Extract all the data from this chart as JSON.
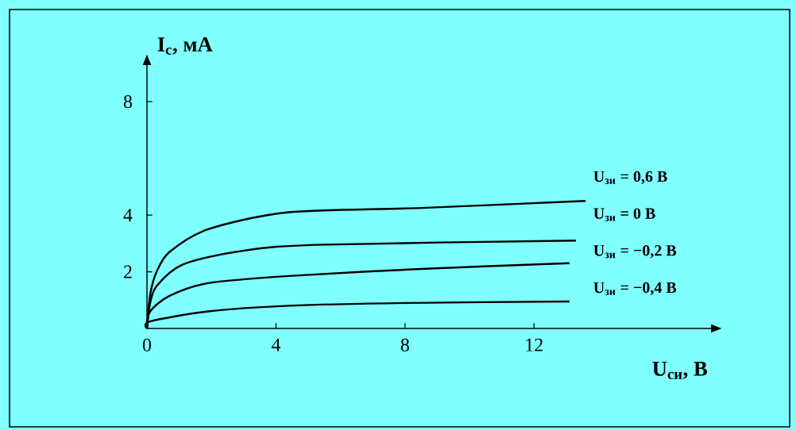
{
  "chart_data": {
    "type": "line",
    "xlabel": "U$_{си}$, В",
    "ylabel": "I$_{c}$, мА",
    "xlim": [
      0,
      17.5
    ],
    "ylim": [
      0,
      9.3
    ],
    "xticks": [
      0,
      4,
      8,
      12
    ],
    "yticks": [
      2,
      4,
      8
    ],
    "grid": false,
    "legend": false,
    "marker": "none",
    "line_style": "solid",
    "series": [
      {
        "name": "U$_{зи}$ = 0,6 В",
        "color": "#000000",
        "x": [
          0,
          0.1,
          0.3,
          0.7,
          1.9,
          4.4,
          8.5,
          13.6
        ],
        "values": [
          0,
          1.2,
          2.0,
          2.7,
          3.5,
          4.1,
          4.25,
          4.5
        ]
      },
      {
        "name": "U$_{зи}$ = 0 В",
        "color": "#000000",
        "x": [
          0,
          0.1,
          0.3,
          1.1,
          2.75,
          5.2,
          13.3
        ],
        "values": [
          0,
          0.9,
          1.5,
          2.25,
          2.7,
          2.95,
          3.1
        ]
      },
      {
        "name": "U$_{зи}$ = −0,2 В",
        "color": "#000000",
        "x": [
          0,
          0.1,
          0.7,
          1.9,
          4.4,
          8.5,
          13.1
        ],
        "values": [
          0,
          0.6,
          1.15,
          1.6,
          1.85,
          2.1,
          2.3
        ]
      },
      {
        "name": "U$_{зи}$ = −0,4 В",
        "color": "#000000",
        "x": [
          0,
          0.1,
          1.9,
          4.4,
          8.1,
          13.1
        ],
        "values": [
          0,
          0.25,
          0.6,
          0.8,
          0.9,
          0.95
        ]
      }
    ]
  }
}
